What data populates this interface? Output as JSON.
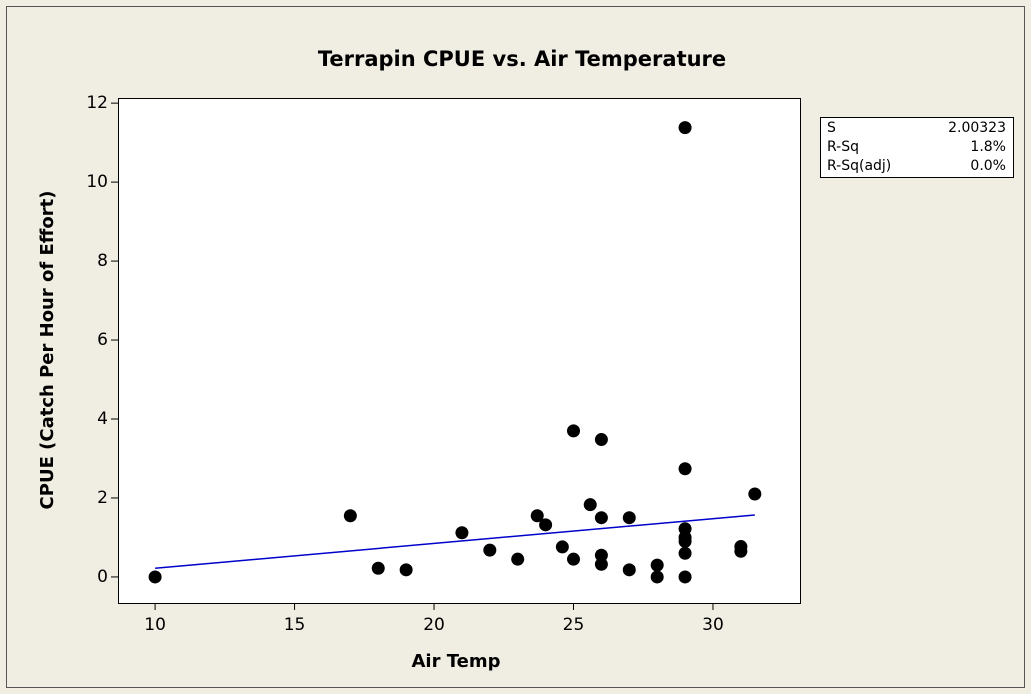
{
  "chart_data": {
    "type": "scatter",
    "title": "Terrapin CPUE vs. Air Temperature",
    "xlabel": "Air Temp",
    "ylabel": "CPUE (Catch Per Hour of Effort)",
    "x": [
      10,
      17,
      18,
      19,
      21,
      22,
      23,
      23.7,
      24,
      24.6,
      25,
      25,
      25.6,
      26,
      26,
      26,
      26,
      27,
      27,
      28,
      28,
      29,
      29,
      29,
      29,
      29,
      29,
      29,
      31,
      31,
      31.5
    ],
    "values": [
      0,
      1.55,
      0.22,
      0.18,
      1.12,
      0.68,
      0.45,
      1.55,
      1.32,
      0.76,
      3.7,
      0.45,
      1.83,
      3.48,
      1.5,
      0.55,
      0.32,
      1.5,
      0.18,
      0.3,
      0,
      11.38,
      2.74,
      1.22,
      1.0,
      0.9,
      0.6,
      0,
      0.77,
      0.65,
      2.1
    ],
    "color": "#000000",
    "fit": {
      "x": [
        10,
        31.5
      ],
      "values": [
        0.22,
        1.57
      ],
      "color": "#0000cc"
    },
    "xlim": [
      8.67,
      33.12
    ],
    "xticks": [
      10,
      15,
      20,
      25,
      30
    ],
    "ylim": [
      -0.66,
      12.13
    ],
    "yticks": [
      0,
      2,
      4,
      6,
      8,
      10,
      12
    ],
    "stats": [
      [
        "S",
        "2.00323"
      ],
      [
        "R-Sq",
        "1.8%"
      ],
      [
        "R-Sq(adj)",
        "0.0%"
      ]
    ]
  }
}
